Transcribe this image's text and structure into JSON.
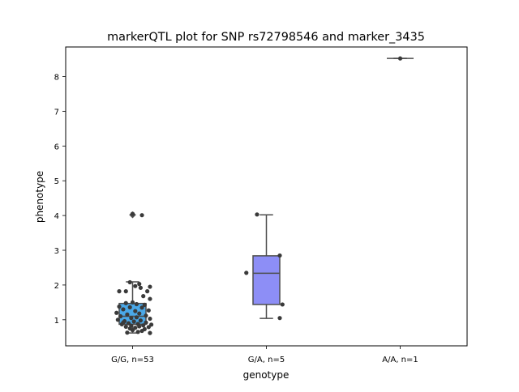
{
  "chart_data": {
    "type": "box",
    "title": "markerQTL plot for SNP rs72798546 and marker_3435",
    "xlabel": "genotype",
    "ylabel": "phenotype",
    "categories": [
      "G/G, n=53",
      "G/A, n=5",
      "A/A, n=1"
    ],
    "ylim": [
      0.25,
      8.85
    ],
    "yticks": [
      1,
      2,
      3,
      4,
      5,
      6,
      7,
      8
    ],
    "box_colors": [
      "#4aa8e8",
      "#8d8ef6",
      "#c8a7f0"
    ],
    "point_color": "#3a3a3a",
    "line_color": "#4d4d4d",
    "boxes": [
      {
        "q1": 0.87,
        "median": 1.1,
        "q3": 1.47,
        "whisker_low": 0.62,
        "whisker_high": 2.09,
        "outliers": [
          4.02
        ]
      },
      {
        "q1": 1.44,
        "median": 2.34,
        "q3": 2.84,
        "whisker_low": 1.04,
        "whisker_high": 4.02,
        "outliers": []
      },
      {
        "q1": 8.52,
        "median": 8.52,
        "q3": 8.52,
        "whisker_low": 8.52,
        "whisker_high": 8.52,
        "outliers": []
      }
    ],
    "points": [
      [
        {
          "dx": 0.07,
          "y": 4.01
        },
        {
          "dx": 0.0,
          "y": 4.05
        },
        {
          "dx": -0.02,
          "y": 2.08
        },
        {
          "dx": 0.05,
          "y": 2.03
        },
        {
          "dx": 0.02,
          "y": 1.97
        },
        {
          "dx": 0.13,
          "y": 1.95
        },
        {
          "dx": 0.06,
          "y": 1.92
        },
        {
          "dx": -0.1,
          "y": 1.82
        },
        {
          "dx": -0.05,
          "y": 1.82
        },
        {
          "dx": 0.11,
          "y": 1.82
        },
        {
          "dx": 0.08,
          "y": 1.68
        },
        {
          "dx": 0.13,
          "y": 1.6
        },
        {
          "dx": 0.0,
          "y": 1.5
        },
        {
          "dx": -0.05,
          "y": 1.48
        },
        {
          "dx": 0.03,
          "y": 1.45
        },
        {
          "dx": 0.09,
          "y": 1.43
        },
        {
          "dx": -0.1,
          "y": 1.38
        },
        {
          "dx": -0.02,
          "y": 1.36
        },
        {
          "dx": 0.07,
          "y": 1.35
        },
        {
          "dx": -0.07,
          "y": 1.3
        },
        {
          "dx": 0.12,
          "y": 1.27
        },
        {
          "dx": 0.02,
          "y": 1.25
        },
        {
          "dx": -0.12,
          "y": 1.2
        },
        {
          "dx": 0.05,
          "y": 1.18
        },
        {
          "dx": -0.04,
          "y": 1.15
        },
        {
          "dx": 0.1,
          "y": 1.12
        },
        {
          "dx": -0.09,
          "y": 1.1
        },
        {
          "dx": 0.03,
          "y": 1.07
        },
        {
          "dx": -0.01,
          "y": 1.05
        },
        {
          "dx": 0.13,
          "y": 1.03
        },
        {
          "dx": -0.11,
          "y": 1.0
        },
        {
          "dx": 0.06,
          "y": 0.98
        },
        {
          "dx": -0.06,
          "y": 0.96
        },
        {
          "dx": 0.01,
          "y": 0.95
        },
        {
          "dx": 0.1,
          "y": 0.92
        },
        {
          "dx": -0.03,
          "y": 0.9
        },
        {
          "dx": 0.04,
          "y": 0.88
        },
        {
          "dx": -0.08,
          "y": 0.87
        },
        {
          "dx": 0.14,
          "y": 0.86
        },
        {
          "dx": 0.08,
          "y": 0.84
        },
        {
          "dx": -0.01,
          "y": 0.83
        },
        {
          "dx": 0.05,
          "y": 0.81
        },
        {
          "dx": -0.05,
          "y": 0.8
        },
        {
          "dx": 0.12,
          "y": 0.79
        },
        {
          "dx": 0.02,
          "y": 0.77
        },
        {
          "dx": -0.02,
          "y": 0.75
        },
        {
          "dx": 0.09,
          "y": 0.73
        },
        {
          "dx": 0.0,
          "y": 0.7
        },
        {
          "dx": 0.07,
          "y": 0.68
        },
        {
          "dx": 0.04,
          "y": 0.65
        },
        {
          "dx": -0.04,
          "y": 0.63
        },
        {
          "dx": 0.13,
          "y": 0.62
        },
        {
          "dx": -0.07,
          "y": 0.92
        }
      ],
      [
        {
          "dx": -0.07,
          "y": 4.03
        },
        {
          "dx": 0.1,
          "y": 2.85
        },
        {
          "dx": -0.15,
          "y": 2.35
        },
        {
          "dx": 0.12,
          "y": 1.44
        },
        {
          "dx": 0.1,
          "y": 1.05
        }
      ],
      [
        {
          "dx": 0.0,
          "y": 8.52
        }
      ]
    ]
  }
}
